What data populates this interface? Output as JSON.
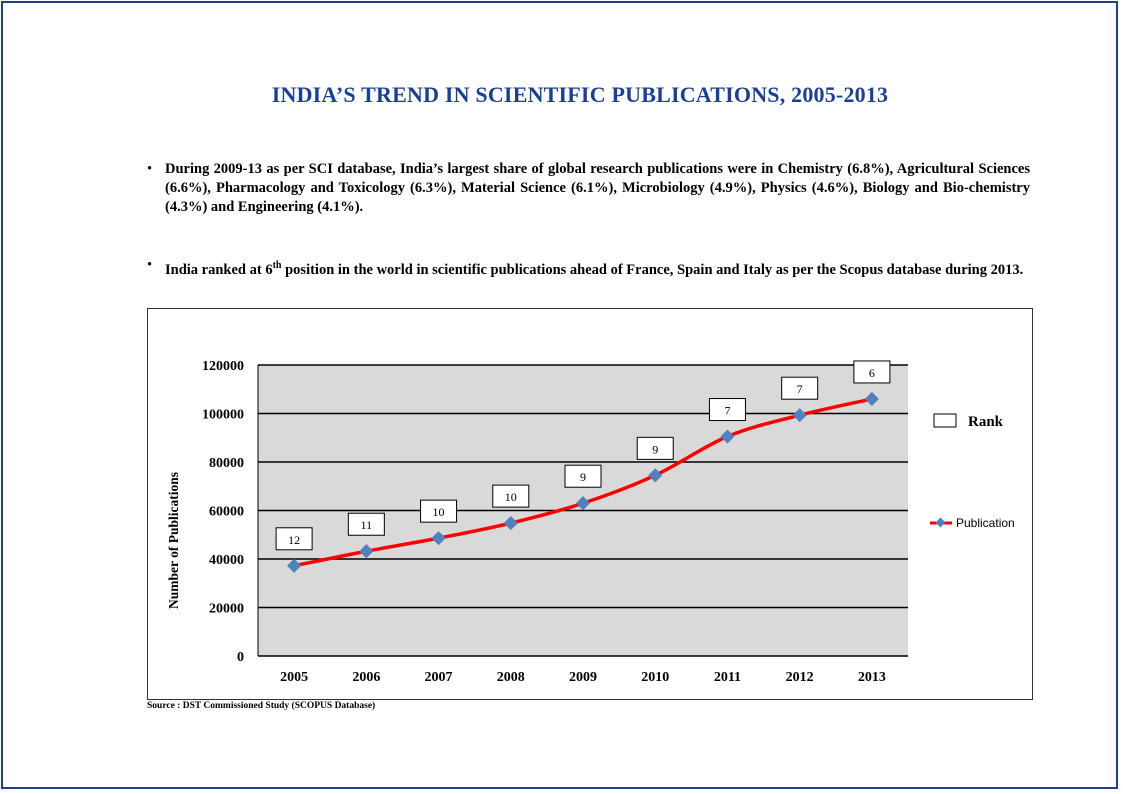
{
  "title": "INDIA’S TREND IN SCIENTIFIC PUBLICATIONS, 2005-2013",
  "bullets": [
    {
      "text": "During 2009-13 as per SCI database, India’s largest share of global research publications were in Chemistry (6.8%), Agricultural Sciences (6.6%), Pharmacology and Toxicology (6.3%), Material Science (6.1%), Microbiology (4.9%), Physics (4.6%), Biology and Bio-chemistry (4.3%) and Engineering (4.1%)."
    },
    {
      "text_before": "India ranked at 6",
      "superscript": "th",
      "text_after": " position in the world in scientific publications ahead of France, Spain and Italy as per the Scopus database during 2013."
    }
  ],
  "source": "Source : DST Commissioned Study (SCOPUS Database)",
  "colors": {
    "title": "#1a3f99",
    "frame": "#1f3f8f",
    "line": "#ff0000",
    "marker": "#4f81bd",
    "plot_bg": "#d9d9d9"
  },
  "chart_data": {
    "type": "line",
    "categories": [
      "2005",
      "2006",
      "2007",
      "2008",
      "2009",
      "2010",
      "2011",
      "2012",
      "2013"
    ],
    "series": [
      {
        "name": "Publication",
        "values": [
          37200,
          43200,
          48600,
          54800,
          63000,
          74500,
          90500,
          99300,
          106000
        ]
      }
    ],
    "rank_labels": [
      "12",
      "11",
      "10",
      "10",
      "9",
      "9",
      "7",
      "7",
      "6"
    ],
    "ylabel": "Number of Publications",
    "xlabel": "",
    "ylim": [
      0,
      120000
    ],
    "yticks": [
      0,
      20000,
      40000,
      60000,
      80000,
      100000,
      120000
    ],
    "grid": true,
    "legend": [
      {
        "label": "Rank",
        "type": "box"
      },
      {
        "label": "Publication",
        "type": "line-marker"
      }
    ],
    "legend_position": "right"
  }
}
